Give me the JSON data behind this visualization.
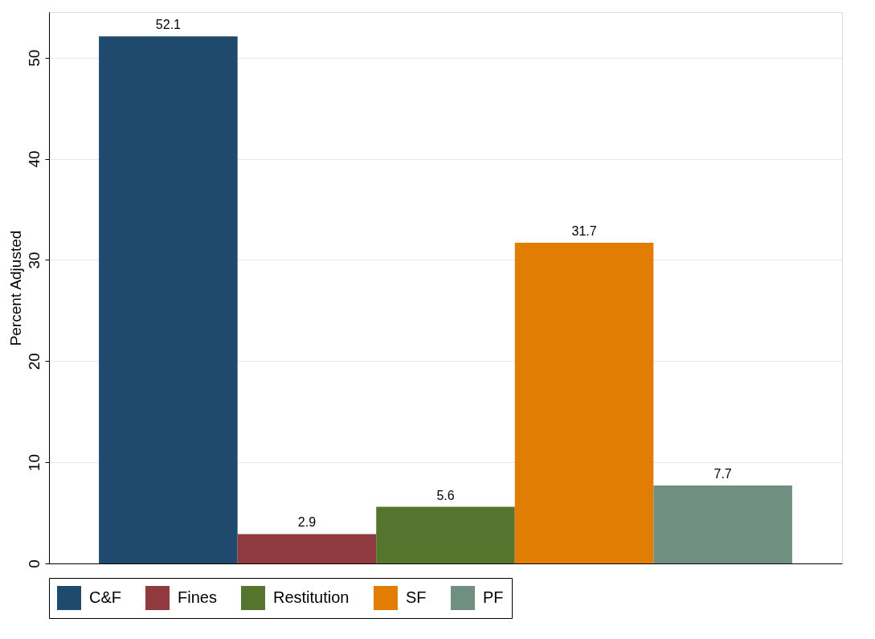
{
  "chart_data": {
    "type": "bar",
    "ylabel": "Percent Adjusted",
    "categories": [
      null
    ],
    "series": [
      {
        "name": "C&F",
        "color": "#1f4a6e",
        "values": [
          52.1
        ]
      },
      {
        "name": "Fines",
        "color": "#903a40",
        "values": [
          2.9
        ]
      },
      {
        "name": "Restitution",
        "color": "#55752f",
        "values": [
          5.6
        ]
      },
      {
        "name": "SF",
        "color": "#e17d02",
        "values": [
          31.7
        ]
      },
      {
        "name": "PF",
        "color": "#6f8f80",
        "values": [
          7.7
        ]
      }
    ],
    "ylim": [
      0,
      54.5
    ],
    "yticks": [
      0,
      10,
      20,
      30,
      40,
      50
    ],
    "grid": "y",
    "data_labels": true,
    "legend": "bottom"
  }
}
